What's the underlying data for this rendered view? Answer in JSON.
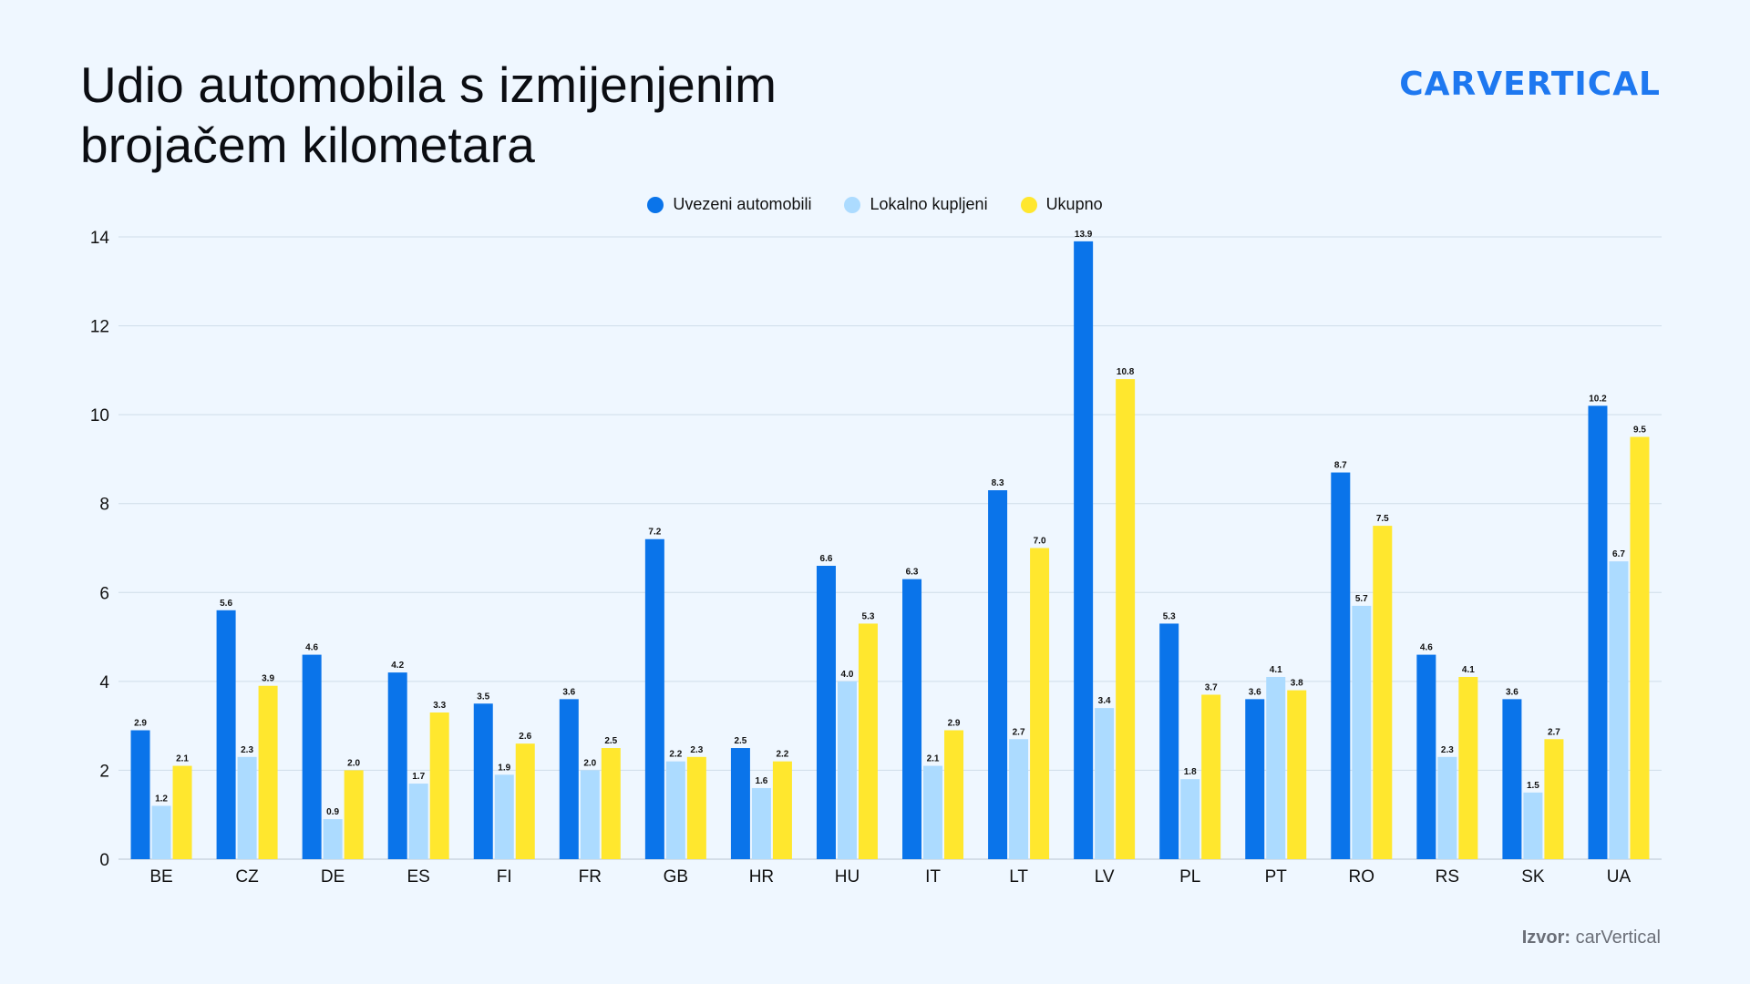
{
  "page": {
    "title_line1": "Udio automobila s izmijenjenim",
    "title_line2": "brojačem kilometara",
    "logo_text": "carVertical",
    "source_label": "Izvor:",
    "source_value": "carVertical"
  },
  "colors": {
    "background": "#eff7ff",
    "brand": "#1e78f0",
    "series_imported": "#0a74ea",
    "series_local": "#acdbff",
    "series_total": "#ffe72e",
    "grid": "#cfdde9"
  },
  "chart_data": {
    "type": "bar",
    "title": "Udio automobila s izmijenjenim brojačem kilometara",
    "xlabel": "",
    "ylabel": "",
    "ylim": [
      0,
      14
    ],
    "yticks": [
      0,
      2,
      4,
      6,
      8,
      10,
      12,
      14
    ],
    "grid": true,
    "legend_position": "top-center",
    "categories": [
      "BE",
      "CZ",
      "DE",
      "ES",
      "FI",
      "FR",
      "GB",
      "HR",
      "HU",
      "IT",
      "LT",
      "LV",
      "PL",
      "PT",
      "RO",
      "RS",
      "SK",
      "UA"
    ],
    "series": [
      {
        "name": "Uvezeni automobili",
        "color": "#0a74ea",
        "values": [
          2.9,
          5.6,
          4.6,
          4.2,
          3.5,
          3.6,
          7.2,
          2.5,
          6.6,
          6.3,
          8.3,
          13.9,
          5.3,
          3.6,
          8.7,
          4.6,
          3.6,
          10.2
        ]
      },
      {
        "name": "Lokalno kupljeni",
        "color": "#acdbff",
        "values": [
          1.2,
          2.3,
          0.9,
          1.7,
          1.9,
          2.0,
          2.2,
          1.6,
          4.0,
          2.1,
          2.7,
          3.4,
          1.8,
          4.1,
          5.7,
          2.3,
          1.5,
          6.7
        ]
      },
      {
        "name": "Ukupno",
        "color": "#ffe72e",
        "values": [
          2.1,
          3.9,
          2.0,
          3.3,
          2.6,
          2.5,
          2.3,
          2.2,
          5.3,
          2.9,
          7.0,
          10.8,
          3.7,
          3.8,
          7.5,
          4.1,
          2.7,
          9.5
        ]
      }
    ]
  }
}
